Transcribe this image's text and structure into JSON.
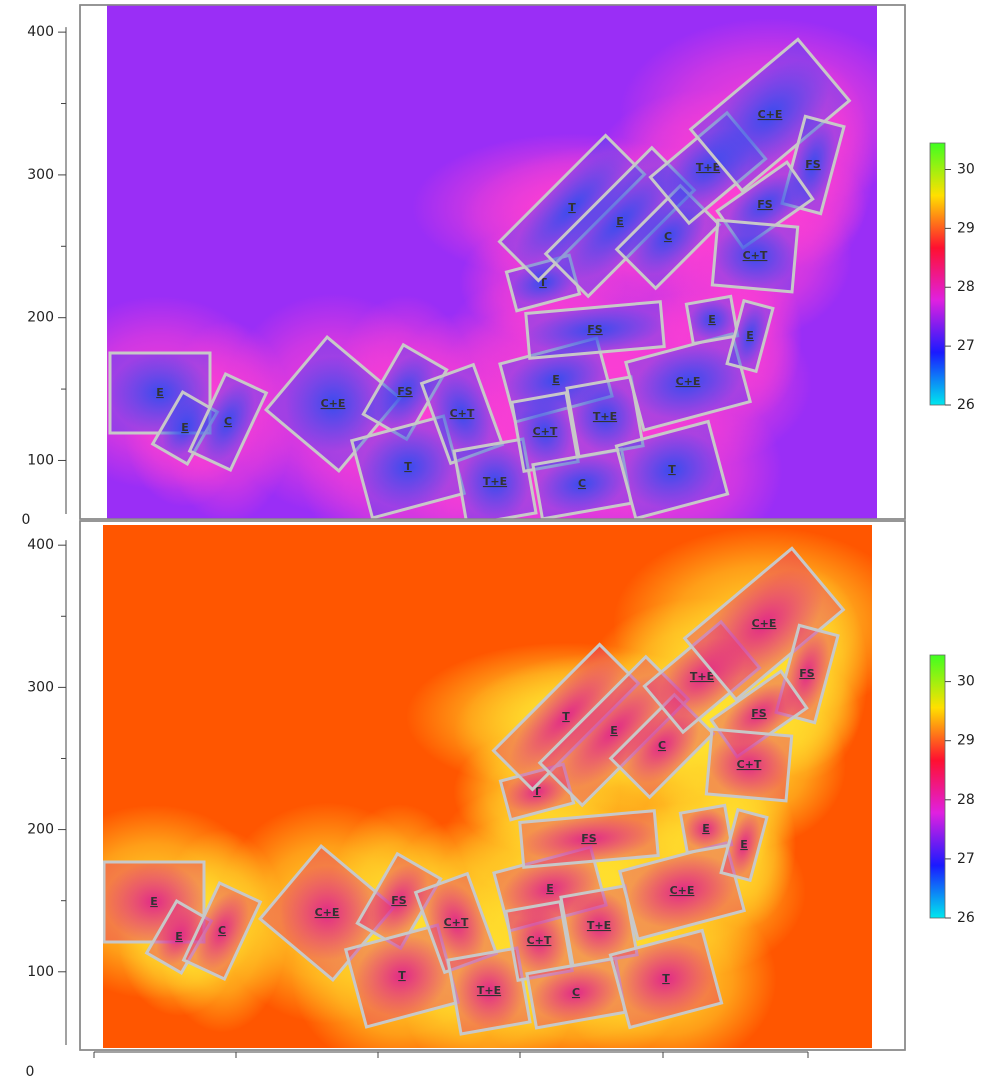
{
  "chart_data": [
    {
      "type": "heatmap",
      "ylim": [
        59,
        419
      ],
      "yticks": [
        100,
        200,
        300,
        400
      ],
      "corner_label": "0",
      "background_color": "#9a2ef6",
      "plot_fill": "#2f4cf0",
      "halo_color": "#ff3fd2",
      "colorbar": {
        "lim": [
          26,
          30.45
        ],
        "ticks": [
          26,
          27,
          28,
          29,
          30
        ],
        "colors": [
          "#00e8ee",
          "#1a1aff",
          "#e020e0",
          "#ff1030",
          "#ffe000",
          "#40ff20"
        ]
      },
      "plots": [
        "E",
        "E",
        "C",
        "C+E",
        "FS",
        "T",
        "C+T",
        "T+E",
        "E",
        "C+T",
        "T+E",
        "C",
        "T",
        "C+E",
        "E",
        "E",
        "FS",
        "T",
        "T",
        "E",
        "C",
        "T+E",
        "C+E",
        "FS",
        "FS",
        "C+T"
      ]
    },
    {
      "type": "heatmap",
      "ylim": [
        45,
        417
      ],
      "yticks": [
        100,
        200,
        300,
        400
      ],
      "corner_label": "0",
      "background_color": "#ff5600",
      "plot_fill": "#e0208c",
      "halo_color": "#ffe630",
      "colorbar": {
        "lim": [
          26,
          30.45
        ],
        "ticks": [
          26,
          27,
          28,
          29,
          30
        ],
        "colors": [
          "#00e8ee",
          "#1a1aff",
          "#e020e0",
          "#ff1030",
          "#ffe000",
          "#40ff20"
        ]
      },
      "plots": [
        "E",
        "E",
        "C",
        "C+E",
        "FS",
        "T",
        "C+T",
        "T+E",
        "E",
        "C+T",
        "T+E",
        "C",
        "T",
        "C+E",
        "E",
        "E",
        "FS",
        "T",
        "T",
        "E",
        "C",
        "T+E",
        "C+E",
        "FS",
        "FS",
        "C+T"
      ]
    }
  ]
}
